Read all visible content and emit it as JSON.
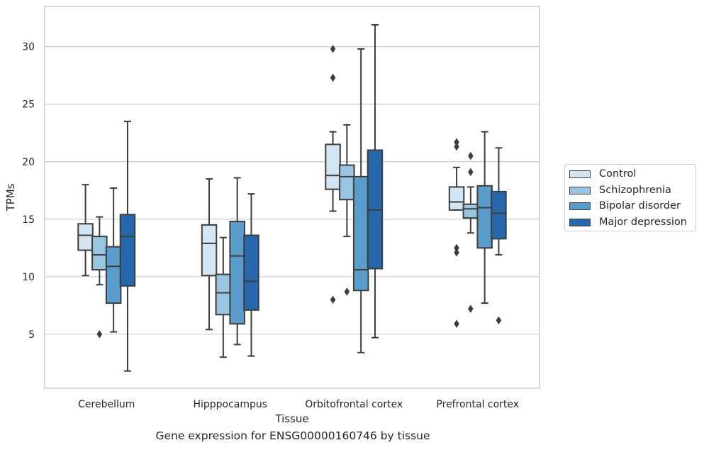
{
  "chart_data": {
    "type": "box",
    "title": "Gene expression for ENSG00000160746 by tissue",
    "xlabel": "Tissue",
    "ylabel": "TPMs",
    "ylim": [
      0.3,
      33.5
    ],
    "yticks": [
      5,
      10,
      15,
      20,
      25,
      30
    ],
    "grid": "horizontal",
    "legend_position": "right",
    "categories": [
      "Cerebellum",
      "Hipppocampus",
      "Orbitofrontal cortex",
      "Prefrontal cortex"
    ],
    "series": [
      {
        "name": "Control",
        "color": "#d3e4f3",
        "boxes": [
          {
            "whisker_low": 10.1,
            "q1": 12.3,
            "median": 13.6,
            "q3": 14.6,
            "whisker_high": 18.0,
            "outliers": []
          },
          {
            "whisker_low": 5.4,
            "q1": 10.1,
            "median": 12.9,
            "q3": 14.5,
            "whisker_high": 18.5,
            "outliers": []
          },
          {
            "whisker_low": 15.7,
            "q1": 17.6,
            "median": 18.8,
            "q3": 21.5,
            "whisker_high": 22.6,
            "outliers": [
              29.8,
              27.3,
              8.0
            ]
          },
          {
            "whisker_low": 15.8,
            "q1": 15.8,
            "median": 16.5,
            "q3": 17.8,
            "whisker_high": 19.5,
            "outliers": [
              21.7,
              21.3,
              12.5,
              12.1,
              5.9
            ]
          }
        ]
      },
      {
        "name": "Schizophrenia",
        "color": "#9ac5e0",
        "boxes": [
          {
            "whisker_low": 9.3,
            "q1": 10.6,
            "median": 11.9,
            "q3": 13.5,
            "whisker_high": 15.2,
            "outliers": [
              5.0
            ]
          },
          {
            "whisker_low": 3.0,
            "q1": 6.7,
            "median": 8.6,
            "q3": 10.2,
            "whisker_high": 13.4,
            "outliers": []
          },
          {
            "whisker_low": 13.5,
            "q1": 16.7,
            "median": 18.7,
            "q3": 19.7,
            "whisker_high": 23.2,
            "outliers": [
              8.7
            ]
          },
          {
            "whisker_low": 13.8,
            "q1": 15.1,
            "median": 15.9,
            "q3": 16.3,
            "whisker_high": 17.8,
            "outliers": [
              20.5,
              19.1,
              7.2
            ]
          }
        ]
      },
      {
        "name": "Bipolar disorder",
        "color": "#5a9dcc",
        "boxes": [
          {
            "whisker_low": 5.2,
            "q1": 7.7,
            "median": 10.9,
            "q3": 12.6,
            "whisker_high": 17.7,
            "outliers": []
          },
          {
            "whisker_low": 4.1,
            "q1": 5.9,
            "median": 11.8,
            "q3": 14.8,
            "whisker_high": 18.6,
            "outliers": []
          },
          {
            "whisker_low": 3.4,
            "q1": 8.8,
            "median": 10.6,
            "q3": 18.7,
            "whisker_high": 29.8,
            "outliers": []
          },
          {
            "whisker_low": 7.7,
            "q1": 12.5,
            "median": 16.0,
            "q3": 17.9,
            "whisker_high": 22.6,
            "outliers": []
          }
        ]
      },
      {
        "name": "Major depression",
        "color": "#2767ab",
        "boxes": [
          {
            "whisker_low": 1.8,
            "q1": 9.2,
            "median": 13.5,
            "q3": 15.4,
            "whisker_high": 23.5,
            "outliers": []
          },
          {
            "whisker_low": 3.1,
            "q1": 7.1,
            "median": 9.6,
            "q3": 13.6,
            "whisker_high": 17.2,
            "outliers": []
          },
          {
            "whisker_low": 4.7,
            "q1": 10.7,
            "median": 15.8,
            "q3": 21.0,
            "whisker_high": 31.9,
            "outliers": []
          },
          {
            "whisker_low": 11.9,
            "q1": 13.3,
            "median": 15.5,
            "q3": 17.4,
            "whisker_high": 21.2,
            "outliers": [
              6.2
            ]
          }
        ]
      }
    ]
  }
}
